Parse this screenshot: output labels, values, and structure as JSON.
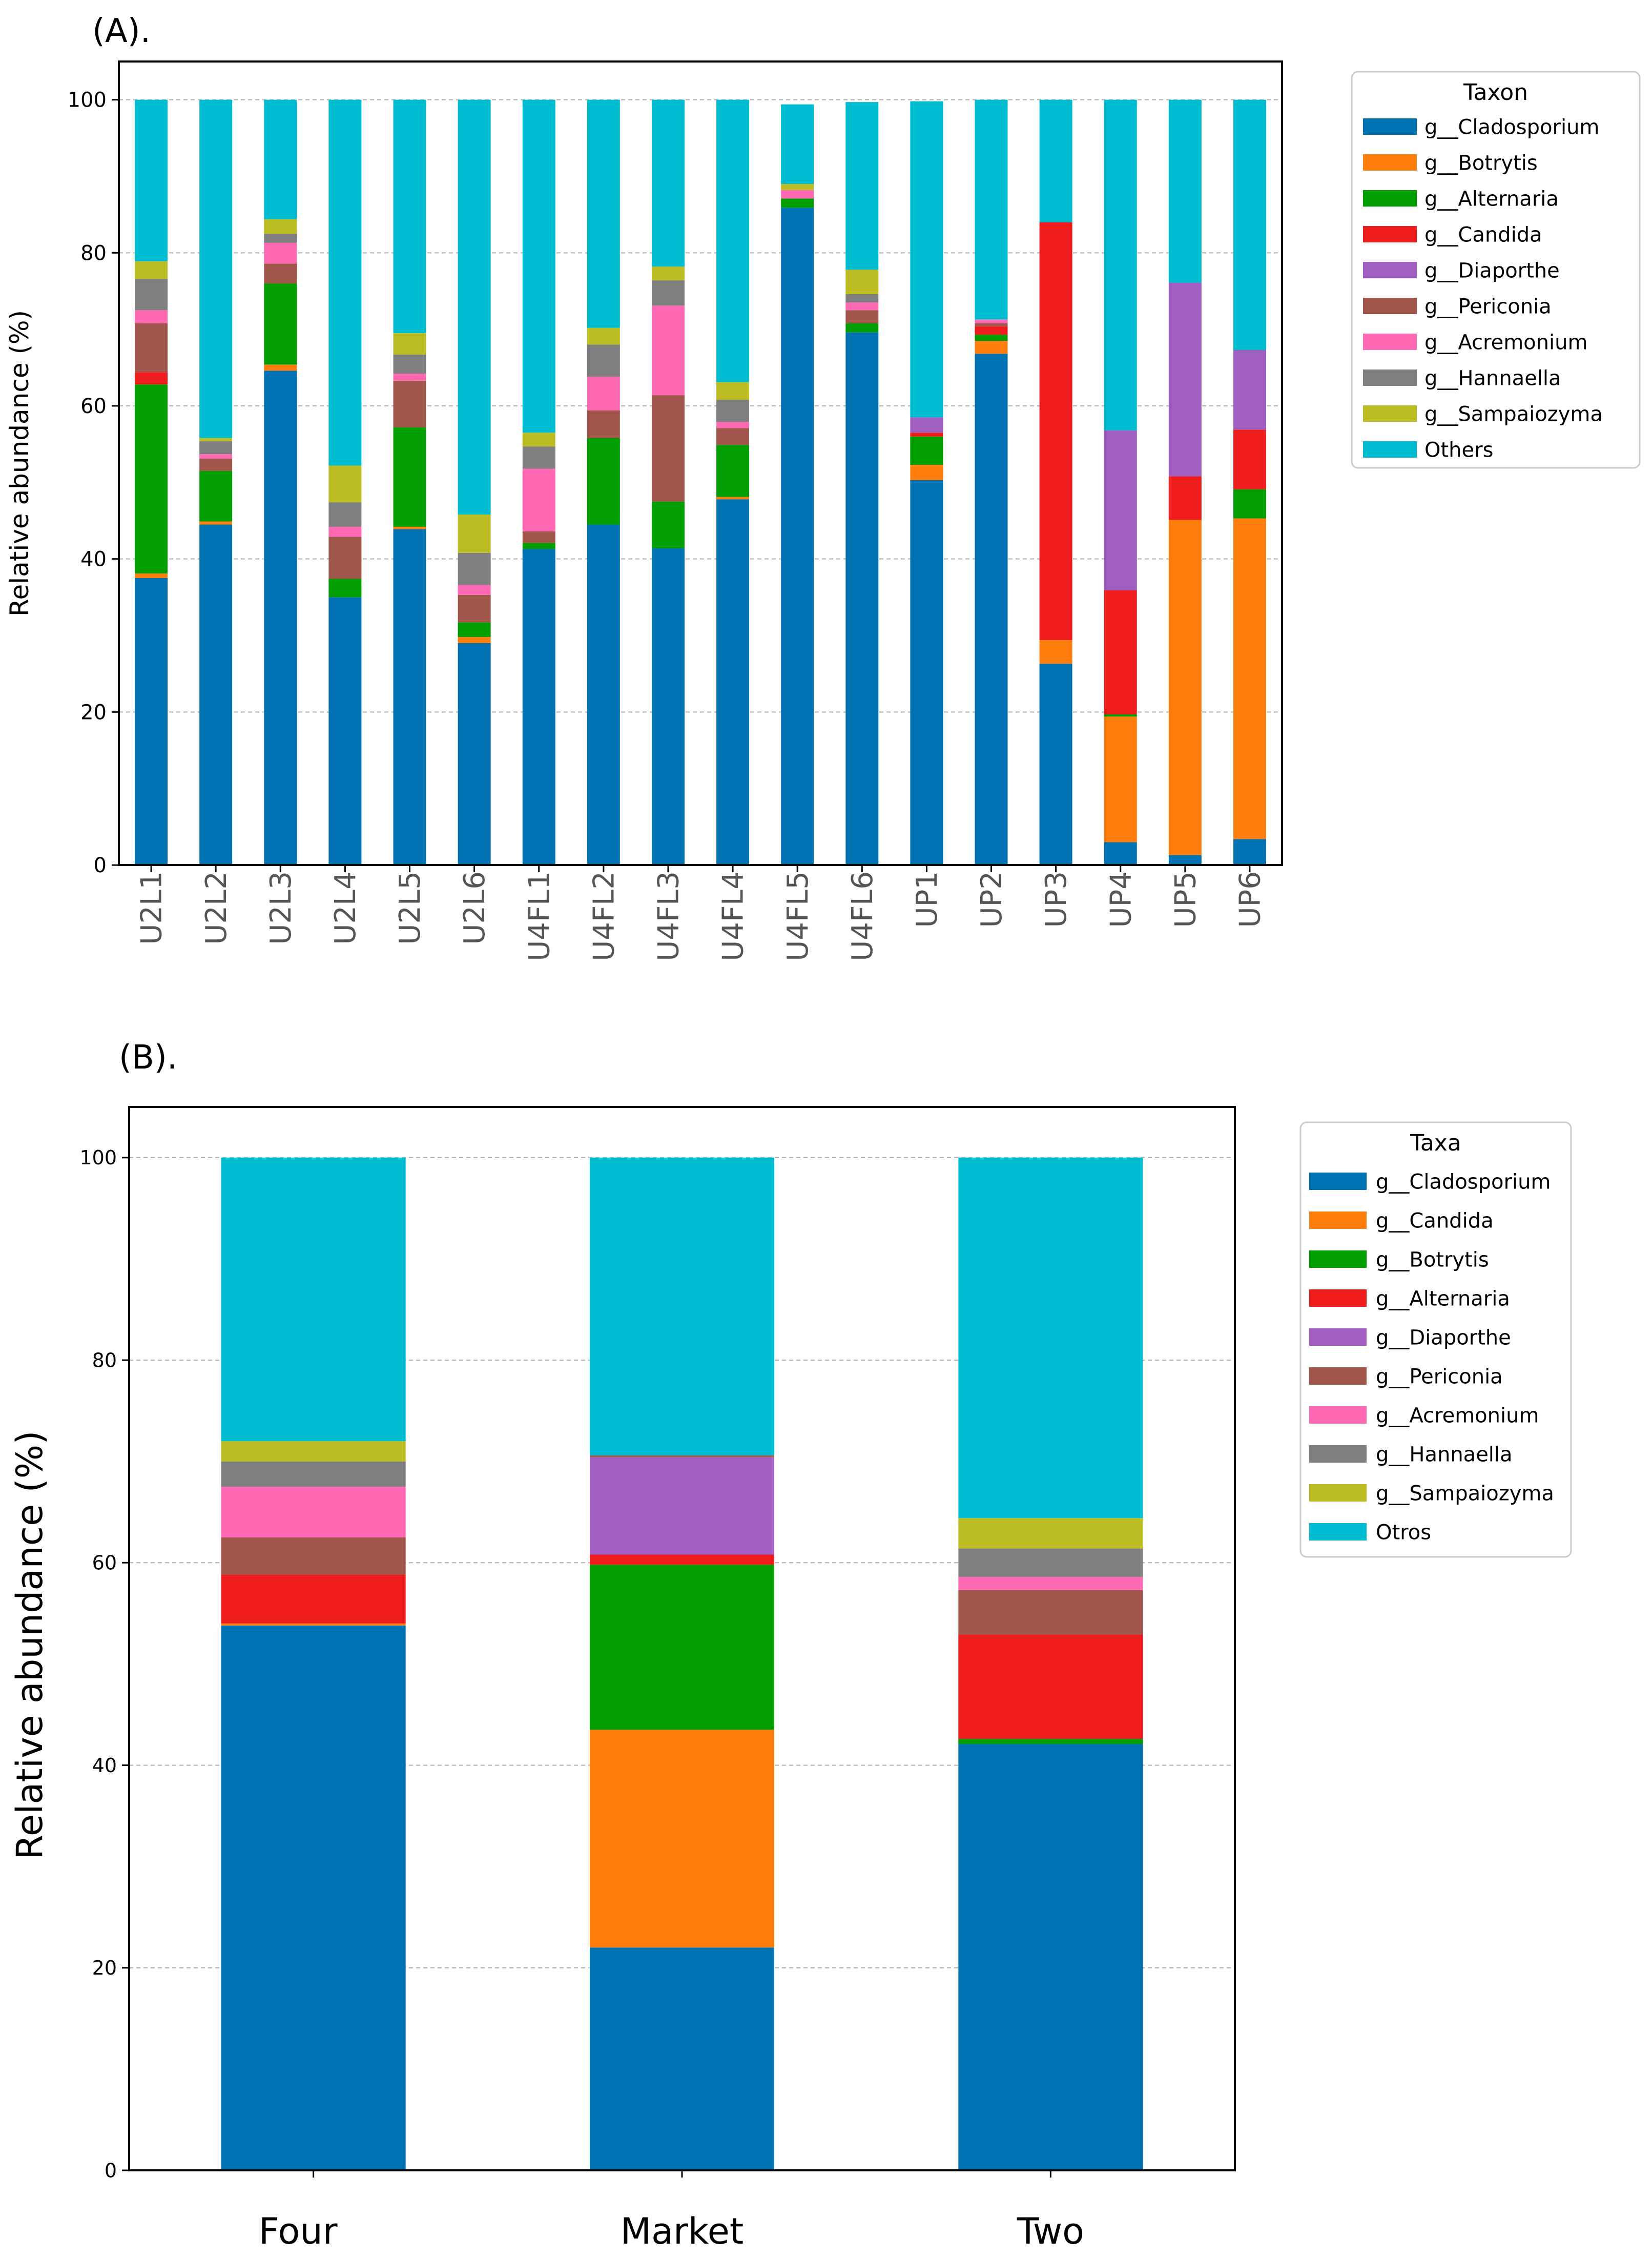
{
  "chart_data": [
    {
      "type": "bar",
      "stacked": true,
      "panel_label": "(A).",
      "title": "",
      "xlabel": "",
      "ylabel": "Relative abundance (%)",
      "ylim": [
        0,
        105
      ],
      "yticks": [
        0,
        20,
        40,
        60,
        80,
        100
      ],
      "grid": "y-dashed",
      "legend_title": "Taxon",
      "legend_position": "right",
      "categories": [
        "U2L1",
        "U2L2",
        "U2L3",
        "U2L4",
        "U2L5",
        "U2L6",
        "U4FL1",
        "U4FL2",
        "U4FL3",
        "U4FL4",
        "U4FL5",
        "U4FL6",
        "UP1",
        "UP2",
        "UP3",
        "UP4",
        "UP5",
        "UP6"
      ],
      "series": [
        {
          "name": "g__Cladosporium",
          "color": "#0072b2",
          "values": [
            37.5,
            44.5,
            64.6,
            35.0,
            43.9,
            29.0,
            41.3,
            44.5,
            41.4,
            47.8,
            85.9,
            69.6,
            50.3,
            66.8,
            26.3,
            3.0,
            1.3,
            3.4
          ]
        },
        {
          "name": "g__Botrytis",
          "color": "#ff7f0e",
          "values": [
            0.6,
            0.4,
            0.8,
            0.0,
            0.3,
            0.8,
            0.0,
            0.0,
            0.0,
            0.3,
            0.0,
            0.0,
            2.0,
            1.7,
            3.1,
            16.4,
            43.8,
            41.9
          ]
        },
        {
          "name": "g__Alternaria",
          "color": "#009e00",
          "values": [
            24.7,
            6.6,
            10.6,
            2.4,
            13.0,
            1.9,
            0.8,
            11.3,
            6.1,
            6.8,
            1.2,
            1.2,
            3.7,
            0.8,
            0.0,
            0.3,
            0.0,
            3.8
          ]
        },
        {
          "name": "g__Candida",
          "color": "#ee1c1c",
          "values": [
            1.6,
            0.0,
            0.0,
            0.0,
            0.0,
            0.0,
            0.0,
            0.0,
            0.0,
            0.0,
            0.0,
            0.0,
            0.5,
            1.1,
            54.6,
            16.2,
            5.7,
            7.8
          ]
        },
        {
          "name": "g__Diaporthe",
          "color": "#a05ec0",
          "values": [
            0.0,
            0.0,
            0.0,
            0.0,
            0.0,
            0.0,
            0.0,
            0.0,
            0.0,
            0.0,
            0.0,
            0.0,
            2.0,
            0.0,
            0.0,
            20.9,
            25.3,
            10.4
          ]
        },
        {
          "name": "g__Periconia",
          "color": "#a0564a",
          "values": [
            6.4,
            1.6,
            2.6,
            5.5,
            6.1,
            3.6,
            1.5,
            3.6,
            13.9,
            2.2,
            0.0,
            1.7,
            0.0,
            0.4,
            0.0,
            0.0,
            0.0,
            0.0
          ]
        },
        {
          "name": "g__Acremonium",
          "color": "#ff69b4",
          "values": [
            1.7,
            0.6,
            2.7,
            1.3,
            0.9,
            1.3,
            8.2,
            4.4,
            11.7,
            0.8,
            1.1,
            1.0,
            0.0,
            0.5,
            0.0,
            0.0,
            0.0,
            0.0
          ]
        },
        {
          "name": "g__Hannaella",
          "color": "#7f7f7f",
          "values": [
            4.1,
            1.7,
            1.2,
            3.2,
            2.5,
            4.2,
            2.9,
            4.2,
            3.3,
            2.9,
            0.0,
            1.1,
            0.0,
            0.0,
            0.0,
            0.0,
            0.0,
            0.0
          ]
        },
        {
          "name": "g__Sampaiozyma",
          "color": "#bcbd22",
          "values": [
            2.3,
            0.4,
            1.9,
            4.8,
            2.8,
            5.0,
            1.8,
            2.2,
            1.8,
            2.3,
            0.8,
            3.2,
            0.0,
            0.0,
            0.0,
            0.0,
            0.0,
            0.0
          ]
        },
        {
          "name": "Others",
          "color": "#00bcd0",
          "values": [
            21.1,
            44.2,
            15.6,
            47.8,
            30.5,
            54.2,
            43.5,
            29.8,
            21.8,
            36.9,
            10.4,
            21.9,
            41.3,
            28.7,
            16.0,
            43.2,
            23.9,
            32.7
          ]
        }
      ]
    },
    {
      "type": "bar",
      "stacked": true,
      "panel_label": "(B).",
      "title": "",
      "xlabel": "",
      "ylabel": "Relative abundance (%)",
      "ylim": [
        0,
        105
      ],
      "yticks": [
        0,
        20,
        40,
        60,
        80,
        100
      ],
      "grid": "y-dashed",
      "legend_title": "Taxa",
      "legend_position": "right",
      "categories": [
        "Four",
        "Market",
        "Two"
      ],
      "series": [
        {
          "name": "g__Cladosporium",
          "color": "#0072b2",
          "values": [
            53.8,
            22.0,
            42.1
          ]
        },
        {
          "name": "g__Candida",
          "color": "#ff7f0e",
          "values": [
            0.2,
            21.5,
            0.0
          ]
        },
        {
          "name": "g__Botrytis",
          "color": "#009e00",
          "values": [
            0.0,
            16.3,
            0.5
          ]
        },
        {
          "name": "g__Alternaria",
          "color": "#ee1c1c",
          "values": [
            4.8,
            1.0,
            10.3
          ]
        },
        {
          "name": "g__Diaporthe",
          "color": "#a05ec0",
          "values": [
            0.0,
            9.6,
            0.0
          ]
        },
        {
          "name": "g__Periconia",
          "color": "#a0564a",
          "values": [
            3.7,
            0.2,
            4.4
          ]
        },
        {
          "name": "g__Acremonium",
          "color": "#ff69b4",
          "values": [
            5.0,
            0.0,
            1.3
          ]
        },
        {
          "name": "g__Hannaella",
          "color": "#7f7f7f",
          "values": [
            2.5,
            0.0,
            2.8
          ]
        },
        {
          "name": "g__Sampaiozyma",
          "color": "#bcbd22",
          "values": [
            2.0,
            0.0,
            3.0
          ]
        },
        {
          "name": "Otros",
          "color": "#00bcd0",
          "values": [
            28.0,
            29.4,
            35.6
          ]
        }
      ]
    }
  ]
}
